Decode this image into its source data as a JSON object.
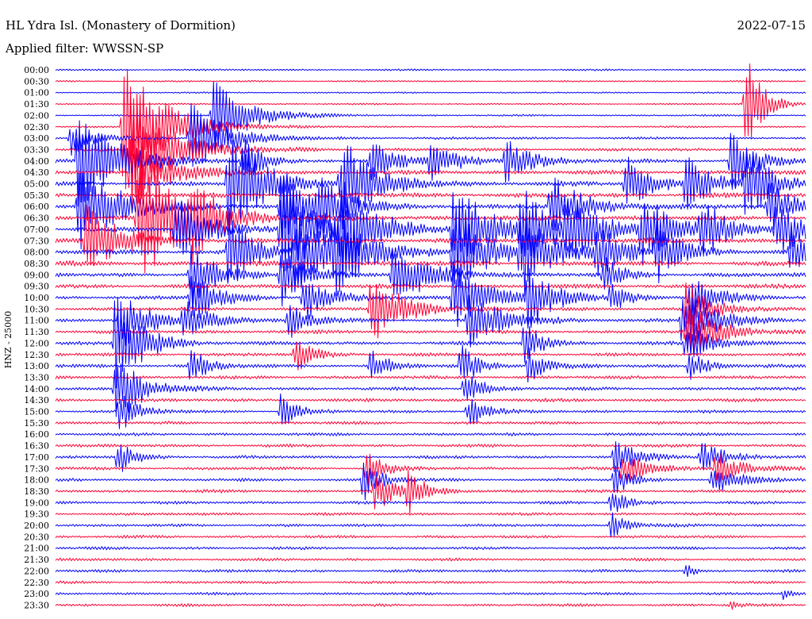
{
  "chart_data": {
    "type": "line",
    "title": "HL Ydra Isl. (Monastery of Dormition)",
    "date": "2022-07-15",
    "subtitle": "Applied filter: WWSSN-SP",
    "ylabel": "HNZ - 25000",
    "tick_labels": [
      "00:00",
      "00:30",
      "01:00",
      "01:30",
      "02:00",
      "02:30",
      "03:00",
      "03:30",
      "04:00",
      "04:30",
      "05:00",
      "05:30",
      "06:00",
      "06:30",
      "07:00",
      "07:30",
      "08:00",
      "08:30",
      "09:00",
      "09:30",
      "10:00",
      "10:30",
      "11:00",
      "11:30",
      "12:00",
      "12:30",
      "13:00",
      "13:30",
      "14:00",
      "14:30",
      "15:00",
      "15:30",
      "16:00",
      "16:30",
      "17:00",
      "17:30",
      "18:00",
      "18:30",
      "19:00",
      "19:30",
      "20:00",
      "20:30",
      "21:00",
      "21:30",
      "22:00",
      "22:30",
      "23:00",
      "23:30"
    ],
    "colors": {
      "even": "#0000ff",
      "odd": "#ff0033",
      "background": "#ffffff",
      "text": "#000000"
    },
    "noise_level": [
      0.9,
      0.8,
      0.8,
      0.8,
      0.9,
      0.9,
      1.3,
      1.6,
      2.0,
      2.2,
      2.4,
      2.5,
      2.6,
      2.6,
      2.6,
      2.6,
      2.5,
      2.5,
      2.3,
      2.2,
      2.1,
      2.0,
      2.0,
      1.9,
      1.9,
      1.8,
      1.8,
      1.7,
      1.7,
      1.7,
      1.6,
      1.6,
      1.6,
      1.6,
      1.6,
      1.6,
      1.6,
      1.6,
      1.5,
      1.5,
      1.5,
      1.5,
      1.5,
      1.5,
      1.5,
      1.4,
      1.4,
      1.4
    ],
    "events": [
      {
        "trace": 6,
        "t": 0.02,
        "amp": 22,
        "dur": 0.03
      },
      {
        "trace": 8,
        "t": 0.03,
        "amp": 70,
        "dur": 0.05
      },
      {
        "trace": 12,
        "t": 0.03,
        "amp": 60,
        "dur": 0.05
      },
      {
        "trace": 15,
        "t": 0.04,
        "amp": 50,
        "dur": 0.04
      },
      {
        "trace": 5,
        "t": 0.09,
        "amp": 90,
        "dur": 0.05
      },
      {
        "trace": 7,
        "t": 0.1,
        "amp": 75,
        "dur": 0.05
      },
      {
        "trace": 9,
        "t": 0.1,
        "amp": 60,
        "dur": 0.04
      },
      {
        "trace": 13,
        "t": 0.11,
        "amp": 90,
        "dur": 0.05
      },
      {
        "trace": 24,
        "t": 0.08,
        "amp": 40,
        "dur": 0.03
      },
      {
        "trace": 22,
        "t": 0.085,
        "amp": 45,
        "dur": 0.03
      },
      {
        "trace": 28,
        "t": 0.08,
        "amp": 55,
        "dur": 0.03
      },
      {
        "trace": 24,
        "t": 0.08,
        "amp": 38,
        "dur": 0.03
      },
      {
        "trace": 30,
        "t": 0.085,
        "amp": 30,
        "dur": 0.02
      },
      {
        "trace": 34,
        "t": 0.083,
        "amp": 24,
        "dur": 0.02
      },
      {
        "trace": 10,
        "t": 0.23,
        "amp": 80,
        "dur": 0.04
      },
      {
        "trace": 13,
        "t": 0.18,
        "amp": 40,
        "dur": 0.03
      },
      {
        "trace": 20,
        "t": 0.18,
        "amp": 35,
        "dur": 0.03
      },
      {
        "trace": 22,
        "t": 0.17,
        "amp": 28,
        "dur": 0.03
      },
      {
        "trace": 4,
        "t": 0.21,
        "amp": 60,
        "dur": 0.04
      },
      {
        "trace": 6,
        "t": 0.18,
        "amp": 55,
        "dur": 0.04
      },
      {
        "trace": 14,
        "t": 0.16,
        "amp": 42,
        "dur": 0.04
      },
      {
        "trace": 18,
        "t": 0.18,
        "amp": 40,
        "dur": 0.03
      },
      {
        "trace": 26,
        "t": 0.18,
        "amp": 25,
        "dur": 0.02
      },
      {
        "trace": 8,
        "t": 0.25,
        "amp": 30,
        "dur": 0.02
      },
      {
        "trace": 12,
        "t": 0.3,
        "amp": 45,
        "dur": 0.04
      },
      {
        "trace": 16,
        "t": 0.23,
        "amp": 50,
        "dur": 0.03
      },
      {
        "trace": 14,
        "t": 0.3,
        "amp": 70,
        "dur": 0.05
      },
      {
        "trace": 12,
        "t": 0.35,
        "amp": 35,
        "dur": 0.03
      },
      {
        "trace": 16,
        "t": 0.32,
        "amp": 50,
        "dur": 0.04
      },
      {
        "trace": 18,
        "t": 0.3,
        "amp": 40,
        "dur": 0.03
      },
      {
        "trace": 20,
        "t": 0.33,
        "amp": 32,
        "dur": 0.03
      },
      {
        "trace": 22,
        "t": 0.31,
        "amp": 28,
        "dur": 0.02
      },
      {
        "trace": 25,
        "t": 0.32,
        "amp": 26,
        "dur": 0.02
      },
      {
        "trace": 30,
        "t": 0.3,
        "amp": 22,
        "dur": 0.02
      },
      {
        "trace": 8,
        "t": 0.42,
        "amp": 30,
        "dur": 0.03
      },
      {
        "trace": 14,
        "t": 0.38,
        "amp": 55,
        "dur": 0.04
      },
      {
        "trace": 16,
        "t": 0.37,
        "amp": 48,
        "dur": 0.04
      },
      {
        "trace": 10,
        "t": 0.38,
        "amp": 60,
        "dur": 0.04
      },
      {
        "trace": 18,
        "t": 0.45,
        "amp": 45,
        "dur": 0.04
      },
      {
        "trace": 21,
        "t": 0.42,
        "amp": 45,
        "dur": 0.04
      },
      {
        "trace": 26,
        "t": 0.42,
        "amp": 24,
        "dur": 0.02
      },
      {
        "trace": 36,
        "t": 0.41,
        "amp": 28,
        "dur": 0.02
      },
      {
        "trace": 37,
        "t": 0.425,
        "amp": 26,
        "dur": 0.03
      },
      {
        "trace": 35,
        "t": 0.415,
        "amp": 24,
        "dur": 0.02
      },
      {
        "trace": 37,
        "t": 0.47,
        "amp": 24,
        "dur": 0.02
      },
      {
        "trace": 8,
        "t": 0.5,
        "amp": 25,
        "dur": 0.03
      },
      {
        "trace": 14,
        "t": 0.53,
        "amp": 65,
        "dur": 0.04
      },
      {
        "trace": 16,
        "t": 0.53,
        "amp": 58,
        "dur": 0.04
      },
      {
        "trace": 20,
        "t": 0.53,
        "amp": 48,
        "dur": 0.04
      },
      {
        "trace": 22,
        "t": 0.55,
        "amp": 40,
        "dur": 0.04
      },
      {
        "trace": 26,
        "t": 0.54,
        "amp": 28,
        "dur": 0.02
      },
      {
        "trace": 28,
        "t": 0.545,
        "amp": 26,
        "dur": 0.02
      },
      {
        "trace": 30,
        "t": 0.55,
        "amp": 22,
        "dur": 0.02
      },
      {
        "trace": 8,
        "t": 0.6,
        "amp": 30,
        "dur": 0.03
      },
      {
        "trace": 14,
        "t": 0.62,
        "amp": 55,
        "dur": 0.04
      },
      {
        "trace": 16,
        "t": 0.62,
        "amp": 55,
        "dur": 0.04
      },
      {
        "trace": 20,
        "t": 0.63,
        "amp": 42,
        "dur": 0.03
      },
      {
        "trace": 24,
        "t": 0.625,
        "amp": 30,
        "dur": 0.02
      },
      {
        "trace": 26,
        "t": 0.63,
        "amp": 24,
        "dur": 0.02
      },
      {
        "trace": 12,
        "t": 0.66,
        "amp": 40,
        "dur": 0.04
      },
      {
        "trace": 14,
        "t": 0.68,
        "amp": 38,
        "dur": 0.04
      },
      {
        "trace": 16,
        "t": 0.72,
        "amp": 32,
        "dur": 0.03
      },
      {
        "trace": 18,
        "t": 0.73,
        "amp": 25,
        "dur": 0.02
      },
      {
        "trace": 10,
        "t": 0.76,
        "amp": 38,
        "dur": 0.03
      },
      {
        "trace": 14,
        "t": 0.78,
        "amp": 42,
        "dur": 0.04
      },
      {
        "trace": 16,
        "t": 0.8,
        "amp": 40,
        "dur": 0.03
      },
      {
        "trace": 20,
        "t": 0.74,
        "amp": 20,
        "dur": 0.02
      },
      {
        "trace": 34,
        "t": 0.745,
        "amp": 22,
        "dur": 0.03
      },
      {
        "trace": 35,
        "t": 0.755,
        "amp": 22,
        "dur": 0.03
      },
      {
        "trace": 36,
        "t": 0.745,
        "amp": 20,
        "dur": 0.02
      },
      {
        "trace": 38,
        "t": 0.74,
        "amp": 18,
        "dur": 0.02
      },
      {
        "trace": 40,
        "t": 0.74,
        "amp": 18,
        "dur": 0.02
      },
      {
        "trace": 10,
        "t": 0.84,
        "amp": 38,
        "dur": 0.03
      },
      {
        "trace": 14,
        "t": 0.86,
        "amp": 38,
        "dur": 0.03
      },
      {
        "trace": 20,
        "t": 0.845,
        "amp": 30,
        "dur": 0.03
      },
      {
        "trace": 21,
        "t": 0.84,
        "amp": 32,
        "dur": 0.03
      },
      {
        "trace": 22,
        "t": 0.835,
        "amp": 38,
        "dur": 0.04
      },
      {
        "trace": 23,
        "t": 0.84,
        "amp": 35,
        "dur": 0.04
      },
      {
        "trace": 24,
        "t": 0.84,
        "amp": 28,
        "dur": 0.03
      },
      {
        "trace": 26,
        "t": 0.845,
        "amp": 22,
        "dur": 0.02
      },
      {
        "trace": 34,
        "t": 0.86,
        "amp": 20,
        "dur": 0.03
      },
      {
        "trace": 35,
        "t": 0.88,
        "amp": 22,
        "dur": 0.03
      },
      {
        "trace": 36,
        "t": 0.875,
        "amp": 20,
        "dur": 0.03
      },
      {
        "trace": 44,
        "t": 0.84,
        "amp": 10,
        "dur": 0.01
      },
      {
        "trace": 3,
        "t": 0.92,
        "amp": 70,
        "dur": 0.02
      },
      {
        "trace": 8,
        "t": 0.9,
        "amp": 40,
        "dur": 0.03
      },
      {
        "trace": 10,
        "t": 0.92,
        "amp": 48,
        "dur": 0.03
      },
      {
        "trace": 12,
        "t": 0.95,
        "amp": 35,
        "dur": 0.03
      },
      {
        "trace": 14,
        "t": 0.96,
        "amp": 40,
        "dur": 0.03
      },
      {
        "trace": 16,
        "t": 0.98,
        "amp": 30,
        "dur": 0.02
      },
      {
        "trace": 47,
        "t": 0.9,
        "amp": 8,
        "dur": 0.01
      },
      {
        "trace": 46,
        "t": 0.97,
        "amp": 8,
        "dur": 0.01
      }
    ]
  }
}
